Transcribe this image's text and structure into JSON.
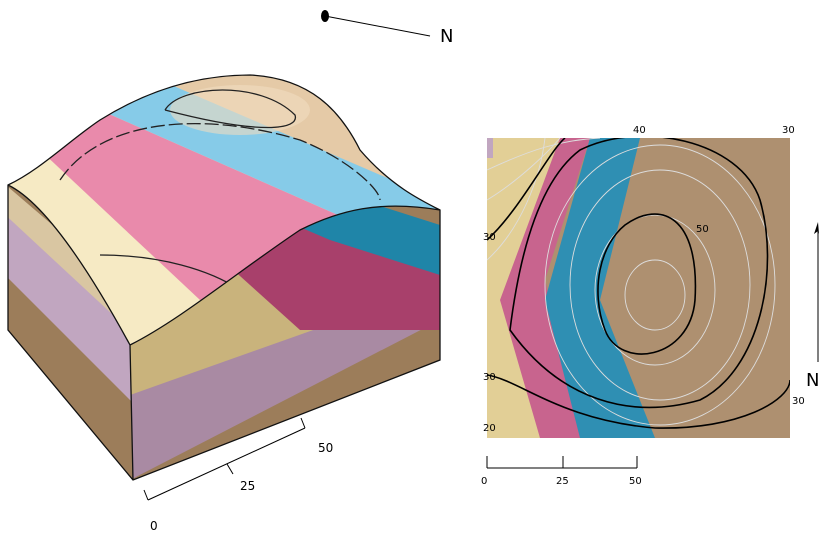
{
  "block": {
    "compass": "N",
    "scale": [
      "0",
      "25",
      "50"
    ]
  },
  "map": {
    "north": "N",
    "scale": [
      "0",
      "25",
      "50"
    ],
    "contour_labels": [
      "40",
      "30",
      "30",
      "50",
      "30",
      "30",
      "20"
    ]
  }
}
